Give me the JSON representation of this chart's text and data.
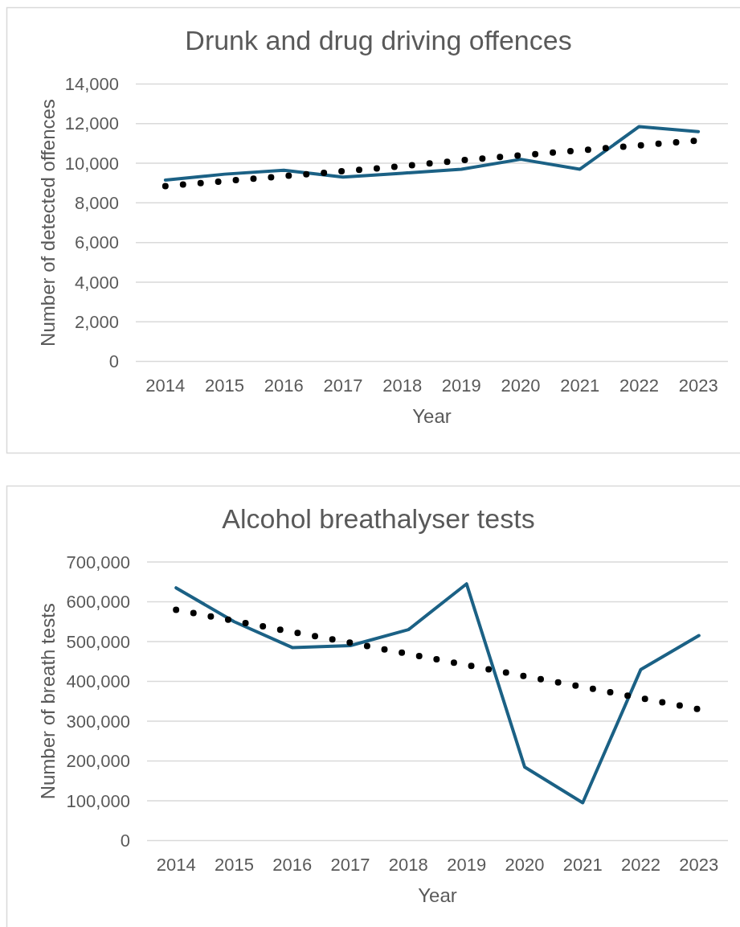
{
  "chart_data": [
    {
      "type": "line",
      "title": "Drunk and drug driving offences",
      "xlabel": "Year",
      "ylabel": "Number of detected offences",
      "x": [
        2014,
        2015,
        2016,
        2017,
        2018,
        2019,
        2020,
        2021,
        2022,
        2023
      ],
      "xlim": [
        2013.5,
        2023.5
      ],
      "xticks": [
        2014,
        2015,
        2016,
        2017,
        2018,
        2019,
        2020,
        2021,
        2022,
        2023
      ],
      "ylim": [
        0,
        14000
      ],
      "yticks": [
        0,
        {
          "value": 2000,
          "label": "2,000"
        },
        {
          "value": 4000,
          "label": "4,000"
        },
        {
          "value": 6000,
          "label": "6,000"
        },
        {
          "value": 8000,
          "label": "8,000"
        },
        {
          "value": 10000,
          "label": "10,000"
        },
        {
          "value": 12000,
          "label": "12,000"
        },
        {
          "value": 14000,
          "label": "14,000"
        }
      ],
      "grid": "y",
      "line_style": "solid",
      "series": [
        {
          "color": "#1b6185",
          "values": [
            9150,
            9450,
            9650,
            9300,
            9500,
            9700,
            10200,
            9700,
            11850,
            11600
          ]
        },
        {
          "type": "line",
          "color": "#000000",
          "line_style": "dotted",
          "values": [
            8850,
            9100,
            9350,
            9600,
            9850,
            10150,
            10400,
            10650,
            10900,
            11150
          ]
        }
      ]
    },
    {
      "type": "line",
      "title": "Alcohol breathalyser tests",
      "xlabel": "Year",
      "ylabel": "Number of breath tests",
      "x": [
        2014,
        2015,
        2016,
        2017,
        2018,
        2019,
        2020,
        2021,
        2022,
        2023
      ],
      "xlim": [
        2013.5,
        2023.5
      ],
      "xticks": [
        2014,
        2015,
        2016,
        2017,
        2018,
        2019,
        2020,
        2021,
        2022,
        2023
      ],
      "ylim": [
        0,
        700000
      ],
      "yticks": [
        0,
        {
          "value": 100000,
          "label": "100,000"
        },
        {
          "value": 200000,
          "label": "200,000"
        },
        {
          "value": 300000,
          "label": "300,000"
        },
        {
          "value": 400000,
          "label": "400,000"
        },
        {
          "value": 500000,
          "label": "500,000"
        },
        {
          "value": 600000,
          "label": "600,000"
        },
        {
          "value": 700000,
          "label": "700,000"
        }
      ],
      "grid": "y",
      "line_style": "solid",
      "series": [
        {
          "color": "#1b6185",
          "values": [
            635000,
            550000,
            485000,
            490000,
            530000,
            645000,
            185000,
            95000,
            430000,
            515000
          ]
        },
        {
          "type": "line",
          "color": "#000000",
          "line_style": "dotted",
          "values": [
            580000,
            552000,
            524000,
            497000,
            469000,
            441000,
            413000,
            386000,
            358000,
            330000
          ]
        }
      ]
    }
  ]
}
